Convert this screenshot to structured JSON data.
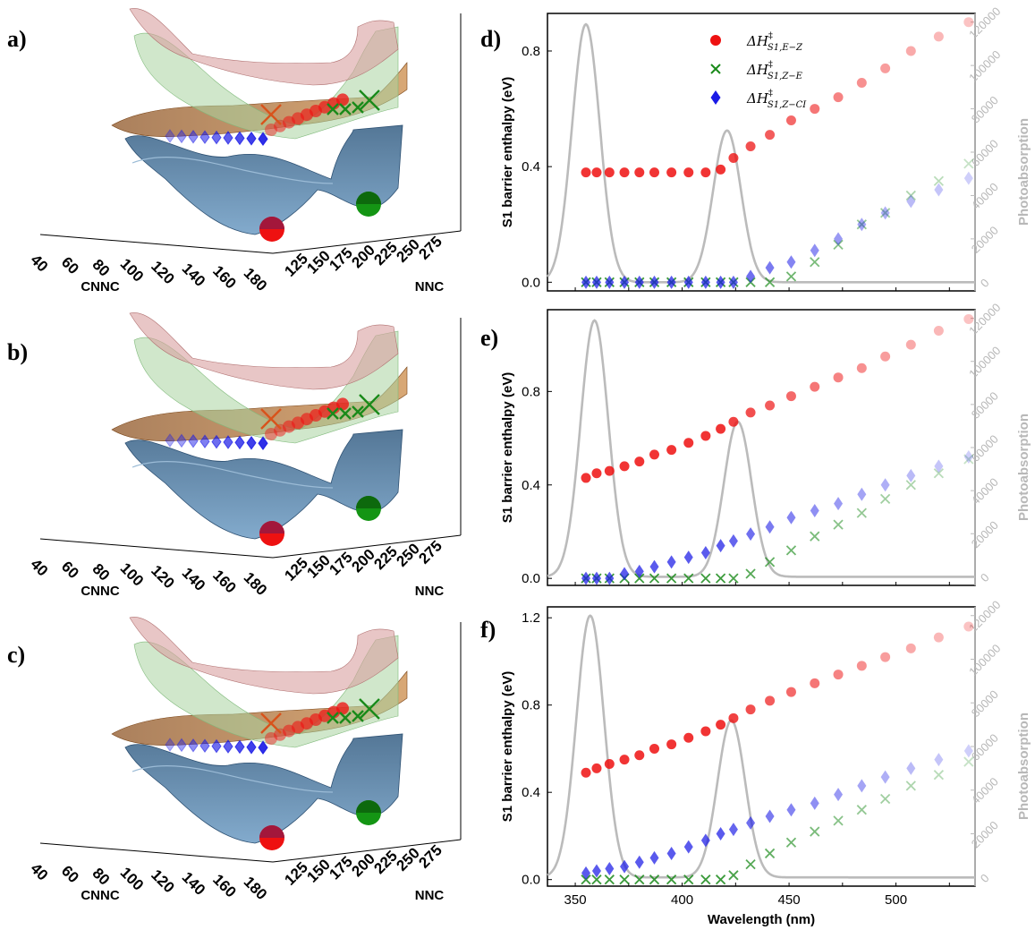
{
  "colors": {
    "e_z": "#ee1111",
    "z_e": "#1a8a1a",
    "z_ci": "#1a1ae6",
    "absorption": "#bbbbbb",
    "surface_blue": "#4a7fab",
    "surface_brown": "#b06a2a",
    "surface_green": "#a9d4a0",
    "surface_red": "#d9a0a0"
  },
  "panels_3d": [
    {
      "letter": "a)"
    },
    {
      "letter": "b)"
    },
    {
      "letter": "c)"
    }
  ],
  "axes_3d": {
    "cnnc_label": "CNNC",
    "nnc_label": "NNC",
    "cnnc_ticks": [
      "40",
      "60",
      "80",
      "100",
      "120",
      "140",
      "160",
      "180"
    ],
    "nnc_ticks": [
      "125",
      "150",
      "175",
      "200",
      "225",
      "250",
      "275"
    ]
  },
  "chart_data": [
    {
      "letter": "d)",
      "type": "scatter",
      "ylabel": "S1 barrier enthalpy (eV)",
      "y2label": "Photoabsorption",
      "xlim": [
        337,
        537
      ],
      "ylim": [
        -0.03,
        0.93
      ],
      "yticks": [
        "0.0",
        "0.4",
        "0.8"
      ],
      "xticks": [],
      "y2lim": [
        -4000,
        124000
      ],
      "y2ticks": [
        "0",
        "20000",
        "40000",
        "60000",
        "80000",
        "100000",
        "120000"
      ],
      "absorption_peaks": [
        {
          "center": 355,
          "sigma": 6.5,
          "height": 119000
        },
        {
          "center": 421,
          "sigma": 6.5,
          "height": 70000
        }
      ],
      "series": [
        {
          "name": "ΔH‡S1,E-Z",
          "marker": "circle",
          "x": [
            355,
            360,
            366,
            373,
            380,
            387,
            395,
            403,
            411,
            418,
            424,
            432,
            441,
            451,
            462,
            473,
            484,
            495,
            507,
            520,
            534
          ],
          "y": [
            0.38,
            0.38,
            0.38,
            0.38,
            0.38,
            0.38,
            0.38,
            0.38,
            0.38,
            0.39,
            0.43,
            0.47,
            0.51,
            0.56,
            0.6,
            0.64,
            0.69,
            0.74,
            0.8,
            0.85,
            0.9
          ]
        },
        {
          "name": "ΔH‡S1,Z-E",
          "marker": "x",
          "x": [
            355,
            360,
            366,
            373,
            380,
            387,
            395,
            403,
            411,
            418,
            424,
            432,
            441,
            451,
            462,
            473,
            484,
            495,
            507,
            520,
            534
          ],
          "y": [
            0.0,
            0.0,
            0.0,
            0.0,
            0.0,
            0.0,
            0.0,
            0.0,
            0.0,
            0.0,
            0.0,
            0.0,
            0.0,
            0.02,
            0.07,
            0.13,
            0.2,
            0.24,
            0.3,
            0.35,
            0.41
          ]
        },
        {
          "name": "ΔH‡S1,Z-CI",
          "marker": "diamond",
          "x": [
            355,
            360,
            366,
            373,
            380,
            387,
            395,
            403,
            411,
            418,
            424,
            432,
            441,
            451,
            462,
            473,
            484,
            495,
            507,
            520,
            534
          ],
          "y": [
            0.0,
            0.0,
            0.0,
            0.0,
            0.0,
            0.0,
            0.0,
            0.0,
            0.0,
            0.0,
            0.0,
            0.02,
            0.05,
            0.07,
            0.11,
            0.15,
            0.2,
            0.24,
            0.28,
            0.32,
            0.36
          ]
        }
      ]
    },
    {
      "letter": "e)",
      "type": "scatter",
      "ylabel": "S1 barrier enthalpy (eV)",
      "y2label": "Photoabsorption",
      "xlim": [
        337,
        537
      ],
      "ylim": [
        -0.03,
        1.15
      ],
      "yticks": [
        "0.0",
        "0.4",
        "0.8"
      ],
      "xticks": [],
      "y2lim": [
        -4000,
        124000
      ],
      "y2ticks": [
        "0",
        "20000",
        "40000",
        "60000",
        "80000",
        "100000",
        "120000"
      ],
      "absorption_peaks": [
        {
          "center": 359,
          "sigma": 6.5,
          "height": 119000
        },
        {
          "center": 426,
          "sigma": 6.5,
          "height": 72000
        }
      ],
      "series": [
        {
          "name": "ΔH‡S1,E-Z",
          "marker": "circle",
          "x": [
            355,
            360,
            366,
            373,
            380,
            387,
            395,
            403,
            411,
            418,
            424,
            432,
            441,
            451,
            462,
            473,
            484,
            495,
            507,
            520,
            534
          ],
          "y": [
            0.43,
            0.45,
            0.46,
            0.48,
            0.5,
            0.53,
            0.55,
            0.58,
            0.61,
            0.64,
            0.67,
            0.71,
            0.74,
            0.78,
            0.82,
            0.86,
            0.9,
            0.95,
            1.0,
            1.06,
            1.11
          ]
        },
        {
          "name": "ΔH‡S1,Z-E",
          "marker": "x",
          "x": [
            355,
            360,
            366,
            373,
            380,
            387,
            395,
            403,
            411,
            418,
            424,
            432,
            441,
            451,
            462,
            473,
            484,
            495,
            507,
            520,
            534
          ],
          "y": [
            0.0,
            0.0,
            0.0,
            0.0,
            0.0,
            0.0,
            0.0,
            0.0,
            0.0,
            0.0,
            0.0,
            0.02,
            0.07,
            0.12,
            0.18,
            0.23,
            0.28,
            0.34,
            0.4,
            0.45,
            0.51
          ]
        },
        {
          "name": "ΔH‡S1,Z-CI",
          "marker": "diamond",
          "x": [
            355,
            360,
            366,
            373,
            380,
            387,
            395,
            403,
            411,
            418,
            424,
            432,
            441,
            451,
            462,
            473,
            484,
            495,
            507,
            520,
            534
          ],
          "y": [
            0.0,
            0.0,
            0.0,
            0.02,
            0.03,
            0.05,
            0.07,
            0.09,
            0.11,
            0.14,
            0.16,
            0.19,
            0.22,
            0.26,
            0.29,
            0.32,
            0.36,
            0.4,
            0.44,
            0.48,
            0.52
          ]
        }
      ]
    },
    {
      "letter": "f)",
      "type": "scatter",
      "ylabel": "S1 barrier enthalpy (eV)",
      "y2label": "Photoabsorption",
      "xlabel": "Wavelength (nm)",
      "xlim": [
        337,
        537
      ],
      "ylim": [
        -0.03,
        1.25
      ],
      "yticks": [
        "0.0",
        "0.4",
        "0.8",
        "1.2"
      ],
      "xticks": [
        "350",
        "400",
        "450",
        "500"
      ],
      "y2lim": [
        -4000,
        124000
      ],
      "y2ticks": [
        "0",
        "20000",
        "40000",
        "60000",
        "80000",
        "100000",
        "120000"
      ],
      "absorption_peaks": [
        {
          "center": 357,
          "sigma": 6.5,
          "height": 120000
        },
        {
          "center": 423,
          "sigma": 6.5,
          "height": 72000
        }
      ],
      "series": [
        {
          "name": "ΔH‡S1,E-Z",
          "marker": "circle",
          "x": [
            355,
            360,
            366,
            373,
            380,
            387,
            395,
            403,
            411,
            418,
            424,
            432,
            441,
            451,
            462,
            473,
            484,
            495,
            507,
            520,
            534
          ],
          "y": [
            0.49,
            0.51,
            0.53,
            0.55,
            0.57,
            0.6,
            0.62,
            0.65,
            0.68,
            0.71,
            0.74,
            0.78,
            0.82,
            0.86,
            0.9,
            0.94,
            0.98,
            1.02,
            1.06,
            1.11,
            1.16
          ]
        },
        {
          "name": "ΔH‡S1,Z-E",
          "marker": "x",
          "x": [
            355,
            360,
            366,
            373,
            380,
            387,
            395,
            403,
            411,
            418,
            424,
            432,
            441,
            451,
            462,
            473,
            484,
            495,
            507,
            520,
            534
          ],
          "y": [
            0.0,
            0.0,
            0.0,
            0.0,
            0.0,
            0.0,
            0.0,
            0.0,
            0.0,
            0.0,
            0.02,
            0.07,
            0.12,
            0.17,
            0.22,
            0.27,
            0.32,
            0.37,
            0.43,
            0.48,
            0.54
          ]
        },
        {
          "name": "ΔH‡S1,Z-CI",
          "marker": "diamond",
          "x": [
            355,
            360,
            366,
            373,
            380,
            387,
            395,
            403,
            411,
            418,
            424,
            432,
            441,
            451,
            462,
            473,
            484,
            495,
            507,
            520,
            534
          ],
          "y": [
            0.03,
            0.04,
            0.05,
            0.06,
            0.08,
            0.1,
            0.12,
            0.15,
            0.18,
            0.21,
            0.23,
            0.26,
            0.29,
            0.32,
            0.35,
            0.39,
            0.43,
            0.47,
            0.51,
            0.55,
            0.59
          ]
        }
      ]
    }
  ],
  "legend": {
    "entries": [
      {
        "text": "ΔH‡S1,E−Z"
      },
      {
        "text": "ΔH‡S1,Z−E"
      },
      {
        "text": "ΔH‡S1,Z−CI"
      }
    ]
  }
}
